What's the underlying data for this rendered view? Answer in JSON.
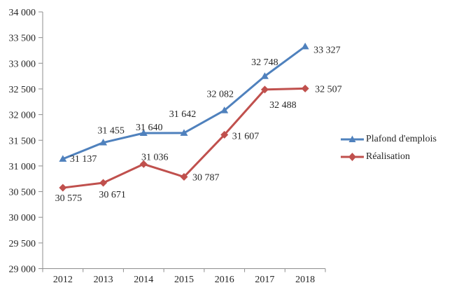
{
  "chart_data": {
    "type": "line",
    "categories": [
      "2012",
      "2013",
      "2014",
      "2015",
      "2016",
      "2017",
      "2018"
    ],
    "series": [
      {
        "name": "Plafond d'emplois",
        "color": "#4F81BD",
        "marker": "triangle",
        "values": [
          31137,
          31455,
          31640,
          31642,
          32082,
          32748,
          33327
        ],
        "labels": [
          "31 137",
          "31 455",
          "31 640",
          "31 642",
          "32 082",
          "32 748",
          "33 327"
        ],
        "label_placement": [
          {
            "anchor": "start",
            "dx": 10,
            "dy": 4
          },
          {
            "anchor": "middle",
            "dx": 11,
            "dy": -13
          },
          {
            "anchor": "middle",
            "dx": 8,
            "dy": -4
          },
          {
            "anchor": "middle",
            "dx": -2,
            "dy": -23
          },
          {
            "anchor": "middle",
            "dx": -6,
            "dy": -19
          },
          {
            "anchor": "middle",
            "dx": 0,
            "dy": -16
          },
          {
            "anchor": "start",
            "dx": 12,
            "dy": 9
          }
        ]
      },
      {
        "name": "Réalisation",
        "color": "#C0504D",
        "marker": "diamond",
        "values": [
          30575,
          30671,
          31036,
          30787,
          31607,
          32488,
          32507
        ],
        "labels": [
          "30 575",
          "30 671",
          "31 036",
          "30 787",
          "31 607",
          "32 488",
          "32 507"
        ],
        "label_placement": [
          {
            "anchor": "middle",
            "dx": 8,
            "dy": 19
          },
          {
            "anchor": "middle",
            "dx": 13,
            "dy": 21
          },
          {
            "anchor": "middle",
            "dx": 16,
            "dy": -6
          },
          {
            "anchor": "start",
            "dx": 12,
            "dy": 5
          },
          {
            "anchor": "start",
            "dx": 11,
            "dy": 6
          },
          {
            "anchor": "middle",
            "dx": 26,
            "dy": 26
          },
          {
            "anchor": "start",
            "dx": 14,
            "dy": 5
          }
        ]
      }
    ],
    "ylim": [
      29000,
      34000
    ],
    "ytick_step": 500,
    "ytick_labels": [
      "29 000",
      "29 500",
      "30 000",
      "30 500",
      "31 000",
      "31 500",
      "32 000",
      "32 500",
      "33 000",
      "33 500",
      "34 000"
    ],
    "grid": false,
    "legend_position": "right",
    "number_format": "space-thousands",
    "axis_color": "#8E8E8E",
    "text_color": "#262626",
    "background": "#FFFFFF"
  }
}
